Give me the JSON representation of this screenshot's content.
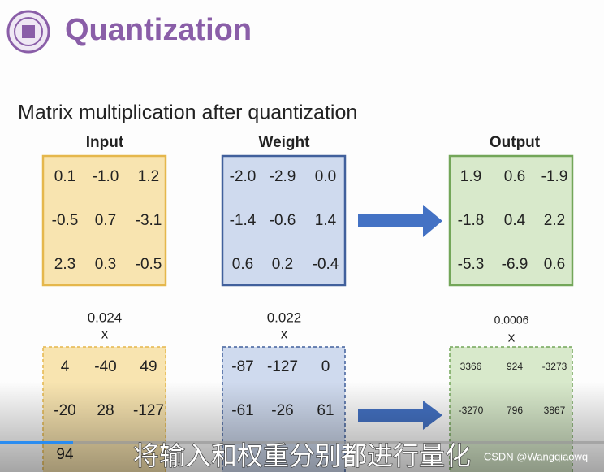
{
  "header": {
    "title": "Quantization"
  },
  "subtitle": "Matrix multiplication after quantization",
  "matrices": [
    {
      "label": "Input",
      "rows": [
        [
          "0.1",
          "-1.0",
          "1.2"
        ],
        [
          "-0.5",
          "0.7",
          "-3.1"
        ],
        [
          "2.3",
          "0.3",
          "-0.5"
        ]
      ],
      "scale": "0.024",
      "times": "x",
      "quantized": [
        [
          "4",
          "-40",
          "49"
        ],
        [
          "-20",
          "28",
          "-127"
        ],
        [
          "94"
        ]
      ]
    },
    {
      "label": "Weight",
      "rows": [
        [
          "-2.0",
          "-2.9",
          "0.0"
        ],
        [
          "-1.4",
          "-0.6",
          "1.4"
        ],
        [
          "0.6",
          "0.2",
          "-0.4"
        ]
      ],
      "scale": "0.022",
      "times": "x",
      "quantized": [
        [
          "-87",
          "-127",
          "0"
        ],
        [
          "-61",
          "-26",
          "61"
        ]
      ]
    },
    {
      "label": "Output",
      "rows": [
        [
          "1.9",
          "0.6",
          "-1.9"
        ],
        [
          "-1.8",
          "0.4",
          "2.2"
        ],
        [
          "-5.3",
          "-6.9",
          "0.6"
        ]
      ],
      "scale": "0.0006",
      "times": "x",
      "quantized": [
        [
          "3366",
          "924",
          "-3273"
        ],
        [
          "-3270",
          "796",
          "3867"
        ]
      ]
    }
  ],
  "caption": "将输入和权重分别都进行量化",
  "watermark": "CSDN @Wangqiaowq"
}
